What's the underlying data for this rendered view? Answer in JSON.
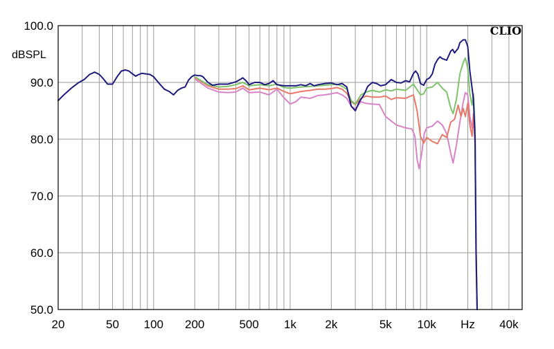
{
  "chart_data": {
    "type": "line",
    "brand": "CLIO",
    "ylabel": "dBSPL",
    "xscale": "log",
    "xlim": [
      20,
      50000
    ],
    "ylim": [
      50,
      100
    ],
    "grid": true,
    "xtick_labels": [
      {
        "value": 20,
        "label": "20"
      },
      {
        "value": 50,
        "label": "50"
      },
      {
        "value": 100,
        "label": "100"
      },
      {
        "value": 200,
        "label": "200"
      },
      {
        "value": 500,
        "label": "500"
      },
      {
        "value": 1000,
        "label": "1k"
      },
      {
        "value": 2000,
        "label": "2k"
      },
      {
        "value": 5000,
        "label": "5k"
      },
      {
        "value": 10000,
        "label": "10k"
      },
      {
        "value": 20000,
        "label": "Hz"
      },
      {
        "value": 40000,
        "label": "40k"
      }
    ],
    "ytick_labels": [
      {
        "value": 100,
        "label": "100.0"
      },
      {
        "value": 90,
        "label": "90.0"
      },
      {
        "value": 80,
        "label": "80.0"
      },
      {
        "value": 70,
        "label": "70.0"
      },
      {
        "value": 60,
        "label": "60.0"
      },
      {
        "value": 50,
        "label": "50.0"
      }
    ],
    "series": [
      {
        "color": "#d883c8",
        "points": [
          [
            200,
            90.6
          ],
          [
            250,
            89.0
          ],
          [
            300,
            88.3
          ],
          [
            350,
            88.2
          ],
          [
            400,
            88.3
          ],
          [
            450,
            89.0
          ],
          [
            500,
            88.2
          ],
          [
            600,
            88.3
          ],
          [
            700,
            87.8
          ],
          [
            800,
            88.8
          ],
          [
            900,
            87.3
          ],
          [
            1000,
            86.2
          ],
          [
            1100,
            86.6
          ],
          [
            1200,
            87.4
          ],
          [
            1400,
            87.2
          ],
          [
            1600,
            87.7
          ],
          [
            1800,
            87.8
          ],
          [
            2000,
            88.0
          ],
          [
            2200,
            88.2
          ],
          [
            2400,
            87.8
          ],
          [
            2600,
            87.2
          ],
          [
            2800,
            85.8
          ],
          [
            3000,
            85.3
          ],
          [
            3300,
            86.6
          ],
          [
            3600,
            86.3
          ],
          [
            4000,
            86.2
          ],
          [
            4500,
            86.1
          ],
          [
            5000,
            84.0
          ],
          [
            5500,
            83.2
          ],
          [
            6000,
            82.5
          ],
          [
            7000,
            82.0
          ],
          [
            7800,
            81.8
          ],
          [
            8200,
            80.5
          ],
          [
            8500,
            76.5
          ],
          [
            8800,
            74.8
          ],
          [
            9200,
            77.5
          ],
          [
            9600,
            81.0
          ],
          [
            10000,
            82.0
          ],
          [
            11000,
            82.3
          ],
          [
            12000,
            83.2
          ],
          [
            13000,
            82.5
          ],
          [
            14000,
            81.0
          ],
          [
            15000,
            77.5
          ],
          [
            15600,
            75.8
          ],
          [
            16500,
            79.0
          ],
          [
            17500,
            83.0
          ],
          [
            18500,
            86.5
          ],
          [
            19200,
            88.2
          ],
          [
            20000,
            87.8
          ],
          [
            20700,
            84.0
          ],
          [
            21500,
            82.0
          ],
          [
            22000,
            84.0
          ],
          [
            22600,
            79.0
          ],
          [
            23000,
            58.0
          ],
          [
            23400,
            50.0
          ]
        ]
      },
      {
        "color": "#e87868",
        "points": [
          [
            200,
            90.9
          ],
          [
            250,
            89.4
          ],
          [
            300,
            88.8
          ],
          [
            350,
            88.8
          ],
          [
            400,
            88.9
          ],
          [
            450,
            89.4
          ],
          [
            500,
            88.7
          ],
          [
            600,
            89.0
          ],
          [
            700,
            88.7
          ],
          [
            800,
            89.0
          ],
          [
            900,
            88.4
          ],
          [
            1000,
            88.0
          ],
          [
            1200,
            88.4
          ],
          [
            1400,
            88.6
          ],
          [
            1600,
            88.8
          ],
          [
            1800,
            88.8
          ],
          [
            2000,
            88.9
          ],
          [
            2200,
            89.1
          ],
          [
            2400,
            88.8
          ],
          [
            2600,
            88.1
          ],
          [
            2800,
            86.6
          ],
          [
            3000,
            86.1
          ],
          [
            3300,
            87.2
          ],
          [
            3600,
            87.6
          ],
          [
            4000,
            87.4
          ],
          [
            4500,
            87.4
          ],
          [
            5000,
            87.6
          ],
          [
            5500,
            87.0
          ],
          [
            6000,
            87.3
          ],
          [
            7000,
            87.2
          ],
          [
            8000,
            87.8
          ],
          [
            8500,
            85.0
          ],
          [
            9000,
            80.5
          ],
          [
            9500,
            79.3
          ],
          [
            10000,
            80.3
          ],
          [
            11000,
            79.6
          ],
          [
            12000,
            79.2
          ],
          [
            13000,
            80.8
          ],
          [
            14000,
            80.3
          ],
          [
            15000,
            83.0
          ],
          [
            16000,
            83.5
          ],
          [
            17000,
            86.0
          ],
          [
            17800,
            84.0
          ],
          [
            18500,
            85.4
          ],
          [
            19200,
            84.0
          ],
          [
            20000,
            86.3
          ],
          [
            20700,
            82.5
          ],
          [
            21500,
            80.5
          ],
          [
            22000,
            84.5
          ],
          [
            22600,
            82.0
          ],
          [
            23000,
            60.0
          ],
          [
            23400,
            50.0
          ]
        ]
      },
      {
        "color": "#7cc36a",
        "points": [
          [
            200,
            91.0
          ],
          [
            250,
            89.6
          ],
          [
            300,
            89.2
          ],
          [
            350,
            89.3
          ],
          [
            400,
            89.6
          ],
          [
            450,
            90.0
          ],
          [
            500,
            89.4
          ],
          [
            600,
            89.6
          ],
          [
            700,
            89.4
          ],
          [
            800,
            89.7
          ],
          [
            900,
            89.1
          ],
          [
            1000,
            89.0
          ],
          [
            1200,
            89.2
          ],
          [
            1400,
            89.3
          ],
          [
            1600,
            89.4
          ],
          [
            1800,
            89.5
          ],
          [
            2000,
            89.6
          ],
          [
            2200,
            89.7
          ],
          [
            2400,
            89.3
          ],
          [
            2600,
            88.8
          ],
          [
            2800,
            86.8
          ],
          [
            3000,
            86.2
          ],
          [
            3300,
            87.8
          ],
          [
            3600,
            88.3
          ],
          [
            4000,
            88.6
          ],
          [
            4500,
            88.3
          ],
          [
            5000,
            88.7
          ],
          [
            5500,
            88.5
          ],
          [
            6000,
            88.8
          ],
          [
            7000,
            88.6
          ],
          [
            8000,
            89.7
          ],
          [
            8500,
            88.7
          ],
          [
            9000,
            87.8
          ],
          [
            9500,
            88.0
          ],
          [
            10000,
            89.0
          ],
          [
            11000,
            89.2
          ],
          [
            12000,
            90.0
          ],
          [
            13000,
            89.0
          ],
          [
            14000,
            88.3
          ],
          [
            15000,
            85.5
          ],
          [
            15600,
            84.5
          ],
          [
            16500,
            87.0
          ],
          [
            17500,
            91.5
          ],
          [
            18500,
            93.5
          ],
          [
            19200,
            94.3
          ],
          [
            20000,
            92.5
          ],
          [
            20700,
            88.0
          ],
          [
            21500,
            86.0
          ],
          [
            22000,
            88.0
          ],
          [
            22600,
            82.0
          ],
          [
            23000,
            60.0
          ],
          [
            23400,
            50.0
          ]
        ]
      },
      {
        "color": "#1e1a7e",
        "points": [
          [
            20,
            86.8
          ],
          [
            22,
            87.8
          ],
          [
            25,
            89.0
          ],
          [
            28,
            89.9
          ],
          [
            31,
            90.5
          ],
          [
            34,
            91.4
          ],
          [
            37,
            91.8
          ],
          [
            40,
            91.4
          ],
          [
            43,
            90.6
          ],
          [
            46,
            89.7
          ],
          [
            50,
            89.7
          ],
          [
            54,
            91.0
          ],
          [
            58,
            92.0
          ],
          [
            62,
            92.2
          ],
          [
            66,
            92.0
          ],
          [
            70,
            91.5
          ],
          [
            74,
            91.1
          ],
          [
            78,
            91.4
          ],
          [
            82,
            91.6
          ],
          [
            88,
            91.5
          ],
          [
            94,
            91.4
          ],
          [
            100,
            91.0
          ],
          [
            110,
            89.8
          ],
          [
            120,
            88.8
          ],
          [
            130,
            88.4
          ],
          [
            140,
            87.8
          ],
          [
            150,
            88.6
          ],
          [
            160,
            89.0
          ],
          [
            170,
            89.2
          ],
          [
            180,
            90.4
          ],
          [
            190,
            91.0
          ],
          [
            200,
            91.3
          ],
          [
            210,
            91.2
          ],
          [
            220,
            91.2
          ],
          [
            230,
            91.0
          ],
          [
            250,
            90.0
          ],
          [
            270,
            89.5
          ],
          [
            300,
            89.7
          ],
          [
            350,
            89.7
          ],
          [
            400,
            90.1
          ],
          [
            430,
            90.5
          ],
          [
            450,
            90.8
          ],
          [
            480,
            90.2
          ],
          [
            500,
            89.6
          ],
          [
            550,
            90.0
          ],
          [
            600,
            90.0
          ],
          [
            650,
            89.6
          ],
          [
            700,
            89.8
          ],
          [
            750,
            90.3
          ],
          [
            800,
            89.6
          ],
          [
            900,
            89.4
          ],
          [
            1000,
            89.4
          ],
          [
            1100,
            89.4
          ],
          [
            1200,
            89.6
          ],
          [
            1300,
            89.4
          ],
          [
            1400,
            89.8
          ],
          [
            1500,
            89.4
          ],
          [
            1600,
            89.6
          ],
          [
            1800,
            89.8
          ],
          [
            2000,
            89.9
          ],
          [
            2200,
            89.6
          ],
          [
            2400,
            89.8
          ],
          [
            2600,
            89.2
          ],
          [
            2800,
            85.8
          ],
          [
            3000,
            85.0
          ],
          [
            3200,
            86.5
          ],
          [
            3500,
            88.0
          ],
          [
            3700,
            89.3
          ],
          [
            4000,
            90.0
          ],
          [
            4300,
            89.8
          ],
          [
            4600,
            89.4
          ],
          [
            5000,
            89.6
          ],
          [
            5500,
            90.5
          ],
          [
            6000,
            90.0
          ],
          [
            6500,
            89.9
          ],
          [
            7000,
            90.3
          ],
          [
            7500,
            90.1
          ],
          [
            8000,
            91.6
          ],
          [
            8300,
            92.0
          ],
          [
            8600,
            91.5
          ],
          [
            9000,
            89.8
          ],
          [
            9500,
            89.5
          ],
          [
            10000,
            90.5
          ],
          [
            10500,
            90.8
          ],
          [
            11000,
            91.5
          ],
          [
            11500,
            93.2
          ],
          [
            12000,
            94.0
          ],
          [
            12500,
            94.5
          ],
          [
            13000,
            94.2
          ],
          [
            14000,
            93.9
          ],
          [
            15000,
            95.5
          ],
          [
            15500,
            95.8
          ],
          [
            16000,
            95.2
          ],
          [
            17000,
            96.0
          ],
          [
            17500,
            97.0
          ],
          [
            18500,
            97.5
          ],
          [
            19200,
            97.5
          ],
          [
            20000,
            96.3
          ],
          [
            20700,
            92.0
          ],
          [
            21500,
            89.0
          ],
          [
            22000,
            87.0
          ],
          [
            22600,
            80.0
          ],
          [
            23000,
            60.0
          ],
          [
            23400,
            50.0
          ]
        ]
      }
    ]
  }
}
